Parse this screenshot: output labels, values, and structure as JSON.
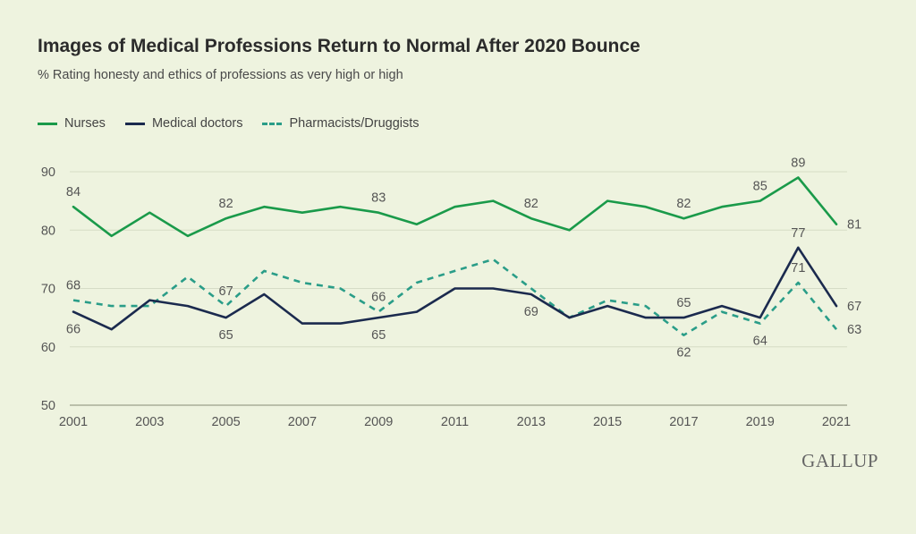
{
  "title": "Images of Medical Professions Return to Normal After 2020 Bounce",
  "subtitle": "% Rating honesty and ethics of professions as very high or high",
  "brand": "GALLUP",
  "chart_data": {
    "type": "line",
    "x": [
      2001,
      2002,
      2003,
      2004,
      2005,
      2006,
      2007,
      2008,
      2009,
      2010,
      2011,
      2012,
      2013,
      2014,
      2015,
      2016,
      2017,
      2018,
      2019,
      2020,
      2021
    ],
    "xticks": [
      "2001",
      "2003",
      "2005",
      "2007",
      "2009",
      "2011",
      "2013",
      "2015",
      "2017",
      "2019",
      "2021"
    ],
    "yticks": [
      "50",
      "60",
      "70",
      "80",
      "90"
    ],
    "ylim": [
      50,
      90
    ],
    "legend_position": "top-left",
    "series": [
      {
        "name": "Nurses",
        "color": "#1a9a4a",
        "dash": "solid",
        "values": [
          84,
          79,
          83,
          79,
          82,
          84,
          83,
          84,
          83,
          81,
          84,
          85,
          82,
          80,
          85,
          84,
          82,
          84,
          85,
          89,
          81
        ],
        "labels": [
          {
            "year": 2001,
            "text": "84",
            "pos": "above"
          },
          {
            "year": 2005,
            "text": "82",
            "pos": "above"
          },
          {
            "year": 2009,
            "text": "83",
            "pos": "above"
          },
          {
            "year": 2013,
            "text": "82",
            "pos": "above"
          },
          {
            "year": 2017,
            "text": "82",
            "pos": "above"
          },
          {
            "year": 2019,
            "text": "85",
            "pos": "above"
          },
          {
            "year": 2020,
            "text": "89",
            "pos": "above"
          },
          {
            "year": 2021,
            "text": "81",
            "pos": "right"
          }
        ]
      },
      {
        "name": "Medical doctors",
        "color": "#1b2a4e",
        "dash": "solid",
        "values": [
          66,
          63,
          68,
          67,
          65,
          69,
          64,
          64,
          65,
          66,
          70,
          70,
          69,
          65,
          67,
          65,
          65,
          67,
          65,
          77,
          67
        ],
        "labels": [
          {
            "year": 2001,
            "text": "66",
            "pos": "below"
          },
          {
            "year": 2005,
            "text": "65",
            "pos": "below"
          },
          {
            "year": 2009,
            "text": "65",
            "pos": "below"
          },
          {
            "year": 2013,
            "text": "69",
            "pos": "below"
          },
          {
            "year": 2017,
            "text": "65",
            "pos": "above"
          },
          {
            "year": 2020,
            "text": "77",
            "pos": "above"
          },
          {
            "year": 2021,
            "text": "67",
            "pos": "right"
          }
        ]
      },
      {
        "name": "Pharmacists/Druggists",
        "color": "#2a9d88",
        "dash": "dashed",
        "values": [
          68,
          67,
          67,
          72,
          67,
          73,
          71,
          70,
          66,
          71,
          73,
          75,
          70,
          65,
          68,
          67,
          62,
          66,
          64,
          71,
          63
        ],
        "labels": [
          {
            "year": 2001,
            "text": "68",
            "pos": "above"
          },
          {
            "year": 2005,
            "text": "67",
            "pos": "above"
          },
          {
            "year": 2009,
            "text": "66",
            "pos": "above"
          },
          {
            "year": 2017,
            "text": "62",
            "pos": "below"
          },
          {
            "year": 2019,
            "text": "64",
            "pos": "below"
          },
          {
            "year": 2020,
            "text": "71",
            "pos": "above"
          },
          {
            "year": 2021,
            "text": "63",
            "pos": "right"
          }
        ]
      }
    ]
  }
}
